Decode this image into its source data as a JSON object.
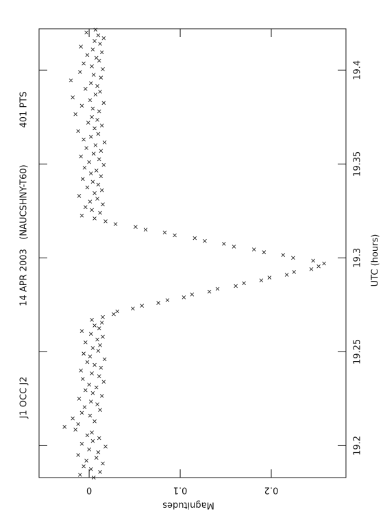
{
  "chart_data": {
    "type": "scatter",
    "title": "J1 OCC J2",
    "date": "14 APR 2003",
    "observatory": "(NAUCSHNY-T60)",
    "points_label": "401 PTS",
    "xlabel": "UTC (hours)",
    "ylabel": "Magnitudes",
    "color": "#222222",
    "y_inverted": true,
    "xlim": [
      19.183,
      19.422
    ],
    "xticks": [
      19.2,
      19.25,
      19.3,
      19.35,
      19.4
    ],
    "ylim": [
      -0.055,
      0.282
    ],
    "yticks": [
      0,
      0.1,
      0.2
    ],
    "x": [
      19.183,
      19.1845,
      19.186,
      19.1875,
      19.189,
      19.1905,
      19.192,
      19.1935,
      19.195,
      19.1965,
      19.198,
      19.1995,
      19.201,
      19.2025,
      19.204,
      19.2055,
      19.207,
      19.2085,
      19.21,
      19.2115,
      19.213,
      19.2145,
      19.216,
      19.2175,
      19.219,
      19.2205,
      19.222,
      19.2235,
      19.225,
      19.2265,
      19.228,
      19.2295,
      19.231,
      19.2325,
      19.234,
      19.2355,
      19.237,
      19.2385,
      19.24,
      19.2415,
      19.243,
      19.2445,
      19.246,
      19.2475,
      19.249,
      19.2505,
      19.252,
      19.2535,
      19.255,
      19.2565,
      19.258,
      19.2595,
      19.261,
      19.2625,
      19.264,
      19.2655,
      19.267,
      19.2685,
      19.27,
      19.2715,
      19.273,
      19.2745,
      19.276,
      19.2775,
      19.279,
      19.2805,
      19.282,
      19.2835,
      19.285,
      19.2865,
      19.288,
      19.2895,
      19.291,
      19.2925,
      19.294,
      19.2955,
      19.297,
      19.2985,
      19.3,
      19.3015,
      19.303,
      19.3045,
      19.306,
      19.3075,
      19.309,
      19.3105,
      19.312,
      19.3135,
      19.315,
      19.3165,
      19.318,
      19.3195,
      19.321,
      19.3225,
      19.324,
      19.3255,
      19.327,
      19.3285,
      19.33,
      19.3315,
      19.333,
      19.3345,
      19.336,
      19.3375,
      19.339,
      19.3405,
      19.342,
      19.3435,
      19.345,
      19.3465,
      19.348,
      19.3495,
      19.351,
      19.3525,
      19.354,
      19.3555,
      19.357,
      19.3585,
      19.36,
      19.3615,
      19.363,
      19.3645,
      19.366,
      19.3675,
      19.369,
      19.3705,
      19.372,
      19.3735,
      19.375,
      19.3765,
      19.378,
      19.3795,
      19.381,
      19.3825,
      19.384,
      19.3855,
      19.387,
      19.3885,
      19.39,
      19.3915,
      19.393,
      19.3945,
      19.396,
      19.3975,
      19.399,
      19.4005,
      19.402,
      19.4035,
      19.405,
      19.4065,
      19.408,
      19.4095,
      19.411,
      19.4125,
      19.414,
      19.4155,
      19.417,
      19.4185,
      19.42,
      19.4215
    ],
    "values": [
      0.005,
      -0.01,
      0.012,
      0.002,
      -0.006,
      0.015,
      -0.003,
      0.008,
      -0.012,
      0.01,
      0.0,
      0.018,
      -0.008,
      0.004,
      0.011,
      -0.002,
      0.003,
      -0.015,
      -0.027,
      -0.012,
      0.006,
      -0.018,
      0.001,
      -0.008,
      0.012,
      -0.005,
      0.009,
      0.002,
      -0.011,
      0.014,
      0.004,
      -0.004,
      0.008,
      0.0,
      0.016,
      -0.007,
      0.011,
      0.003,
      -0.009,
      0.013,
      0.006,
      -0.002,
      0.017,
      0.001,
      -0.006,
      0.01,
      0.004,
      0.012,
      -0.004,
      0.009,
      0.015,
      0.002,
      -0.008,
      0.011,
      0.006,
      0.014,
      0.003,
      0.015,
      0.027,
      0.031,
      0.048,
      0.058,
      0.076,
      0.086,
      0.104,
      0.113,
      0.132,
      0.141,
      0.161,
      0.17,
      0.189,
      0.198,
      0.217,
      0.225,
      0.244,
      0.252,
      0.258,
      0.246,
      0.224,
      0.213,
      0.192,
      0.181,
      0.159,
      0.148,
      0.127,
      0.116,
      0.094,
      0.083,
      0.062,
      0.051,
      0.029,
      0.018,
      0.006,
      -0.008,
      0.012,
      0.003,
      -0.004,
      0.015,
      0.001,
      0.009,
      -0.011,
      0.006,
      0.014,
      -0.002,
      0.01,
      0.004,
      -0.007,
      0.013,
      0.002,
      0.008,
      -0.005,
      0.016,
      0.0,
      0.011,
      -0.009,
      0.005,
      0.013,
      -0.003,
      0.007,
      0.017,
      -0.006,
      0.002,
      0.01,
      -0.012,
      0.006,
      0.014,
      -0.001,
      0.009,
      0.003,
      -0.015,
      0.011,
      0.004,
      -0.008,
      0.016,
      0.001,
      -0.018,
      0.007,
      0.012,
      -0.004,
      0.009,
      0.002,
      -0.02,
      0.013,
      0.005,
      -0.01,
      0.015,
      0.003,
      -0.006,
      0.011,
      0.008,
      -0.002,
      0.014,
      0.004,
      -0.009,
      0.012,
      0.006,
      0.016,
      0.01,
      -0.003,
      0.007
    ]
  }
}
